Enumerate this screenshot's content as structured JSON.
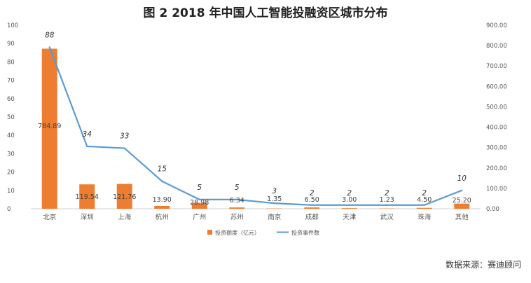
{
  "chart_data": {
    "type": "bar+line",
    "title": "图 2 2018 年中国人工智能投融资区城市分布",
    "categories": [
      "北京",
      "深圳",
      "上海",
      "杭州",
      "广州",
      "苏州",
      "南京",
      "成都",
      "天津",
      "武汉",
      "珠海",
      "其他"
    ],
    "series": [
      {
        "name": "投资额度（亿元）",
        "kind": "bar",
        "axis": "right",
        "color": "#ED7D31",
        "values": [
          784.89,
          119.54,
          121.76,
          13.9,
          28.98,
          6.34,
          1.35,
          6.5,
          3.0,
          1.23,
          4.5,
          25.2
        ],
        "labels": [
          "784.89",
          "119.54",
          "121.76",
          "13.90",
          "28.98",
          "6.34",
          "1.35",
          "6.50",
          "3.00",
          "1.23",
          "4.50",
          "25.20"
        ]
      },
      {
        "name": "投资事件数",
        "kind": "line",
        "axis": "left",
        "color": "#5B9BD5",
        "values": [
          88,
          34,
          33,
          15,
          5,
          5,
          3,
          2,
          2,
          2,
          2,
          10
        ],
        "labels": [
          "88",
          "34",
          "33",
          "15",
          "5",
          "5",
          "3",
          "2",
          "2",
          "2",
          "2",
          "10"
        ]
      }
    ],
    "y_left": {
      "min": 0,
      "max": 100,
      "ticks": [
        "0",
        "10",
        "20",
        "30",
        "40",
        "50",
        "60",
        "70",
        "80",
        "90",
        "100"
      ]
    },
    "y_right": {
      "min": 0,
      "max": 900,
      "ticks": [
        "0.00",
        "100.00",
        "200.00",
        "300.00",
        "400.00",
        "500.00",
        "600.00",
        "700.00",
        "800.00",
        "900.00"
      ]
    },
    "grid": false,
    "legend": "bottom"
  },
  "source": "数据来源：赛迪顾问"
}
